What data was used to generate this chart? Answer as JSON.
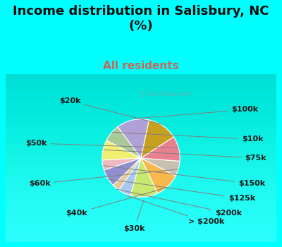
{
  "title": "Income distribution in Salisbury, NC\n(%)",
  "subtitle": "All residents",
  "watermark": "ⓘ City-Data.com",
  "labels": [
    "$100k",
    "$10k",
    "$75k",
    "$150k",
    "$125k",
    "$200k",
    "> $200k",
    "$30k",
    "$40k",
    "$60k",
    "$50k",
    "$20k"
  ],
  "values": [
    13,
    7,
    8,
    4,
    7,
    3,
    5,
    11,
    10,
    6,
    10,
    12
  ],
  "colors": [
    "#b0a0d8",
    "#aac898",
    "#f0f070",
    "#f0b8c0",
    "#9090d0",
    "#e8c898",
    "#a8c8f0",
    "#c8e870",
    "#f8b84c",
    "#c8c0b0",
    "#e88090",
    "#c8a020"
  ],
  "bg_outer": "#00ffff",
  "bg_chart_top": "#e8f8f0",
  "bg_chart_bottom": "#d0eee0",
  "startangle": 78,
  "title_fontsize": 13,
  "subtitle_fontsize": 11,
  "label_fontsize": 8,
  "title_color": "#0a0a0a",
  "subtitle_color": "#cc6655"
}
